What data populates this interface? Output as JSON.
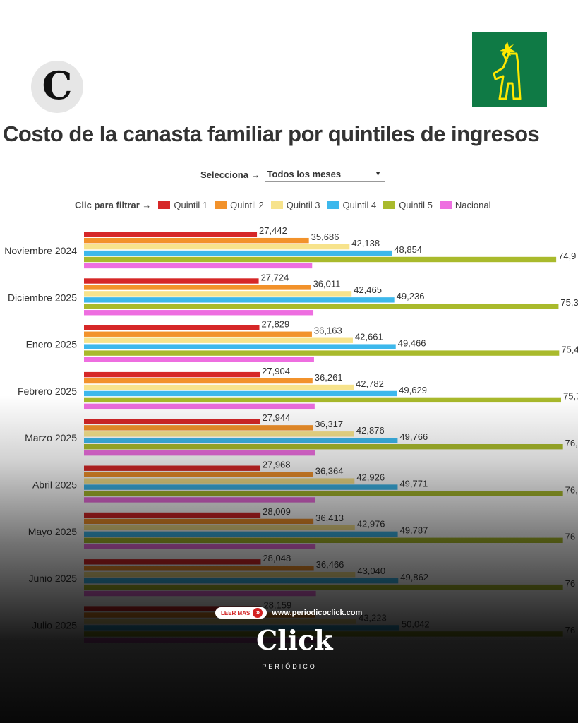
{
  "logos": {
    "left_letter": "C"
  },
  "selector": {
    "label": "Selecciona →",
    "value": "Todos los meses"
  },
  "legend": {
    "label": "Clic para filtrar →"
  },
  "chart_data": {
    "type": "bar",
    "orientation": "horizontal",
    "title": "Costo de la canasta familiar por quintiles de ingresos",
    "categories": [
      "Noviembre 2024",
      "Diciembre 2025",
      "Enero 2025",
      "Febrero 2025",
      "Marzo 2025",
      "Abril 2025",
      "Mayo 2025",
      "Junio 2025",
      "Julio 2025"
    ],
    "series": [
      {
        "name": "Quintil 1",
        "color": "#d62728",
        "values": [
          27442,
          27724,
          27829,
          27904,
          27944,
          27968,
          28009,
          28048,
          28159
        ],
        "labels": [
          "27,442",
          "27,724",
          "27,829",
          "27,904",
          "27,944",
          "27,968",
          "28,009",
          "28,048",
          "28,159"
        ]
      },
      {
        "name": "Quintil 2",
        "color": "#f2922b",
        "values": [
          35686,
          36011,
          36163,
          36261,
          36317,
          36364,
          36413,
          36466,
          36620
        ],
        "labels": [
          "35,686",
          "36,011",
          "36,163",
          "36,261",
          "36,317",
          "36,364",
          "36,413",
          "36,466",
          ""
        ]
      },
      {
        "name": "Quintil 3",
        "color": "#f7e38c",
        "values": [
          42138,
          42465,
          42661,
          42782,
          42876,
          42926,
          42976,
          43040,
          43223
        ],
        "labels": [
          "42,138",
          "42,465",
          "42,661",
          "42,782",
          "42,876",
          "42,926",
          "42,976",
          "43,040",
          "43,223"
        ]
      },
      {
        "name": "Quintil 4",
        "color": "#3db8ec",
        "values": [
          48854,
          49236,
          49466,
          49629,
          49766,
          49771,
          49787,
          49862,
          50042
        ],
        "labels": [
          "48,854",
          "49,236",
          "49,466",
          "49,629",
          "49,766",
          "49,771",
          "49,787",
          "49,862",
          "50,042"
        ]
      },
      {
        "name": "Quintil 5",
        "color": "#a9ba2c",
        "values": [
          74930,
          75300,
          75400,
          75700,
          76000,
          76000,
          76000,
          76000,
          76000
        ],
        "labels": [
          "74,9",
          "75,3",
          "75,4",
          "75,7",
          "76,",
          "76,",
          "76",
          "76",
          "76"
        ]
      },
      {
        "name": "Nacional",
        "color": "#ee6ee0",
        "values": [
          36200,
          36400,
          36500,
          36600,
          36650,
          36700,
          36750,
          36800,
          36900
        ],
        "labels": [
          "",
          "",
          "",
          "",
          "",
          "",
          "",
          "",
          ""
        ]
      }
    ]
  },
  "footer": {
    "read_more": "LEER MAS",
    "url": "www.periodicoclick.com",
    "brand": "Click",
    "brand_sub": "PERIÓDICO"
  }
}
